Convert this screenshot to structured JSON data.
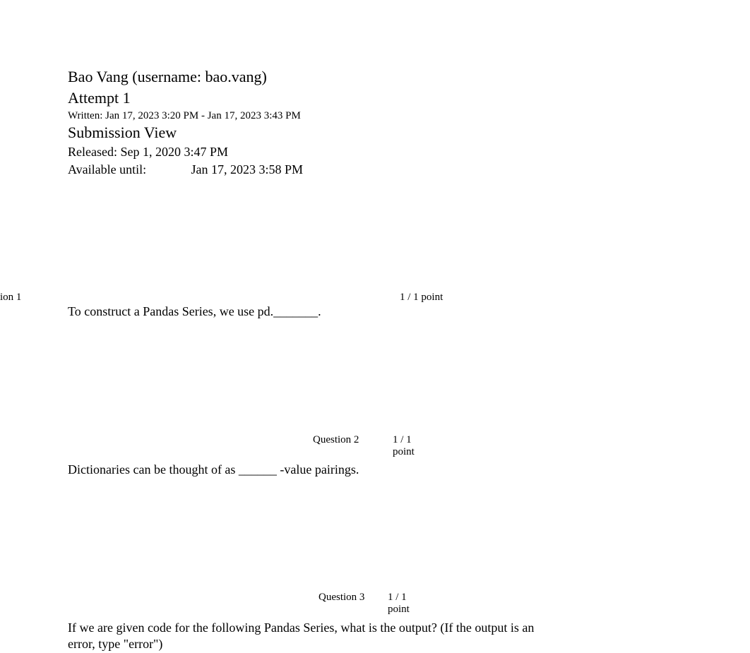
{
  "header": {
    "student_name": "Bao Vang (username: bao.vang)",
    "attempt": "Attempt 1",
    "written": "Written: Jan 17, 2023 3:20 PM - Jan 17, 2023 3:43 PM",
    "submission_view": "Submission View",
    "released": "Released: Sep 1, 2020 3:47 PM",
    "available_label": "Available until:",
    "available_value": "Jan 17, 2023 3:58 PM"
  },
  "questions": [
    {
      "label_partial": "ion 1",
      "points": "1 / 1 point",
      "text": "To construct a Pandas Series, we use pd._______."
    },
    {
      "label": "Question 2",
      "points": "1 / 1 point",
      "text": "Dictionaries can be thought of as ______ -value pairings."
    },
    {
      "label": "Question 3",
      "points": "1 / 1 point",
      "text": "If we are given code for the following Pandas Series, what is the output? (If the output is an error, type \"error\")"
    }
  ],
  "styles": {
    "background_color": "#ffffff",
    "text_color": "#000000",
    "heading_fontsize": 22,
    "body_fontsize": 18,
    "small_fontsize": 15,
    "font_family": "Georgia, 'Times New Roman', Times, serif"
  }
}
